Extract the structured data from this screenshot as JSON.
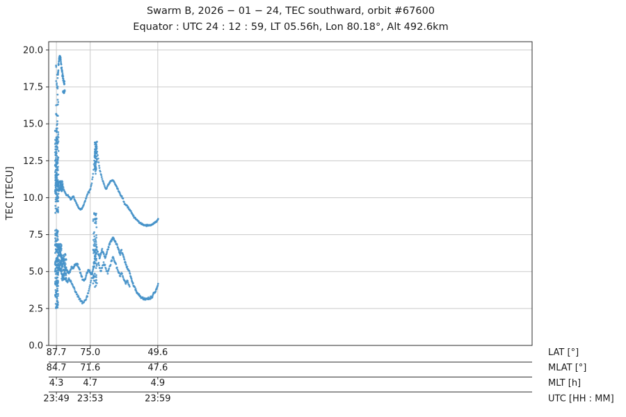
{
  "chart_data": {
    "type": "scatter",
    "title": "Swarm B,  2026 − 01 − 24,  TEC southward,  orbit #67600",
    "subtitle": "Equator :  UTC 24 : 12 : 59,  LT 05.56h,  Lon 80.18°,  Alt 492.6km",
    "ylabel": "TEC [TECU]",
    "ylim": [
      0,
      20.56
    ],
    "yticks": [
      {
        "value": 0.0,
        "label": "0.0"
      },
      {
        "value": 2.5,
        "label": "2.5"
      },
      {
        "value": 5.0,
        "label": "5.0"
      },
      {
        "value": 7.5,
        "label": "7.5"
      },
      {
        "value": 10.0,
        "label": "10.0"
      },
      {
        "value": 12.5,
        "label": "12.5"
      },
      {
        "value": 15.0,
        "label": "15.0"
      },
      {
        "value": 17.5,
        "label": "17.5"
      },
      {
        "value": 20.0,
        "label": "20.0"
      }
    ],
    "x_axis": {
      "coordinate": "latitude_deg",
      "lim": [
        90.6,
        -91.1
      ],
      "tick_lats": [
        87.7,
        75.0,
        49.6
      ],
      "grid": true
    },
    "x_axis_rows": [
      {
        "name": "LAT [°]",
        "labels": [
          "87.7",
          "75.0",
          "49.6"
        ]
      },
      {
        "name": "MLAT [°]",
        "labels": [
          "84.7",
          "71.6",
          "47.6"
        ]
      },
      {
        "name": "MLT [h]",
        "labels": [
          "4.3",
          "4.7",
          "4.9"
        ]
      },
      {
        "name": "UTC [HH : MM]",
        "labels": [
          "23:49",
          "23:53",
          "23:59"
        ]
      }
    ],
    "marker_color": "#4592c8",
    "grid_color": "#cacaca",
    "spine_color": "#2a2a2a",
    "series": [
      {
        "name": "polar-burst-upper",
        "kind": "burst",
        "lat_range": [
          86.9,
          88.2
        ],
        "tec_range": [
          9.0,
          14.6
        ],
        "n": 150
      },
      {
        "name": "polar-burst-top-sparse",
        "kind": "burst",
        "lat_range": [
          87.0,
          87.9
        ],
        "tec_range": [
          14.6,
          19.4
        ],
        "n": 26
      },
      {
        "name": "polar-burst-lower",
        "kind": "burst",
        "lat_range": [
          87.0,
          88.2
        ],
        "tec_range": [
          2.45,
          7.8
        ],
        "n": 150
      },
      {
        "name": "polar-cluster-11",
        "kind": "burst",
        "lat_range": [
          85.3,
          88.0
        ],
        "tec_range": [
          10.45,
          11.15
        ],
        "n": 90
      },
      {
        "name": "polar-cluster-low-a",
        "kind": "burst",
        "lat_range": [
          85.8,
          87.2
        ],
        "tec_range": [
          5.0,
          6.9
        ],
        "n": 70
      },
      {
        "name": "polar-cluster-low-b",
        "kind": "burst",
        "lat_range": [
          84.0,
          85.8
        ],
        "tec_range": [
          4.4,
          6.2
        ],
        "n": 70
      },
      {
        "name": "top-blob-arc",
        "kind": "trace",
        "spread": 0.27,
        "density": 27,
        "points": [
          [
            87.2,
            18.1
          ],
          [
            86.9,
            18.9
          ],
          [
            86.7,
            19.4
          ],
          [
            86.4,
            19.6
          ],
          [
            86.1,
            19.3
          ],
          [
            85.9,
            19.0
          ],
          [
            85.6,
            18.6
          ],
          [
            85.4,
            18.3
          ],
          [
            85.1,
            18.0
          ],
          [
            84.8,
            17.8
          ],
          [
            84.6,
            17.7
          ]
        ]
      },
      {
        "name": "blob-17",
        "kind": "blob",
        "lat": 84.9,
        "tec": 17.15,
        "rlat": 0.55,
        "rtec": 0.18,
        "n": 20
      },
      {
        "name": "spike-burst-lower",
        "kind": "burst",
        "lat_range": [
          72.4,
          73.9
        ],
        "tec_range": [
          3.9,
          9.0
        ],
        "n": 80
      },
      {
        "name": "spike-burst-upper",
        "kind": "burst",
        "lat_range": [
          72.4,
          73.4
        ],
        "tec_range": [
          11.6,
          13.8
        ],
        "n": 60
      },
      {
        "name": "upper-track",
        "kind": "trace",
        "spread": 0.08,
        "density": 6,
        "points": [
          [
            85.4,
            10.85
          ],
          [
            84.8,
            10.5
          ],
          [
            84.0,
            10.2
          ],
          [
            83.3,
            10.15
          ],
          [
            82.7,
            10.0
          ],
          [
            82.2,
            9.9
          ],
          [
            81.4,
            10.1
          ],
          [
            80.65,
            9.8
          ],
          [
            80.1,
            9.6
          ],
          [
            79.1,
            9.25
          ],
          [
            78.6,
            9.2
          ],
          [
            78.0,
            9.3
          ],
          [
            77.5,
            9.5
          ],
          [
            77.0,
            9.7
          ],
          [
            76.5,
            10.0
          ],
          [
            75.95,
            10.3
          ],
          [
            75.4,
            10.4
          ],
          [
            74.9,
            10.6
          ],
          [
            74.4,
            11.0
          ],
          [
            73.9,
            11.6
          ],
          [
            73.3,
            12.8
          ],
          [
            72.8,
            13.8
          ],
          [
            72.55,
            13.4
          ],
          [
            72.0,
            12.6
          ],
          [
            71.5,
            12.0
          ],
          [
            71.0,
            11.6
          ],
          [
            70.5,
            11.3
          ],
          [
            69.95,
            11.0
          ],
          [
            69.4,
            10.7
          ],
          [
            68.9,
            10.6
          ],
          [
            68.4,
            10.8
          ],
          [
            67.9,
            11.0
          ],
          [
            67.3,
            11.1
          ],
          [
            66.8,
            11.2
          ],
          [
            66.3,
            11.15
          ],
          [
            65.8,
            11.0
          ],
          [
            65.3,
            10.8
          ],
          [
            64.7,
            10.6
          ],
          [
            64.2,
            10.4
          ],
          [
            63.7,
            10.2
          ],
          [
            63.2,
            10.1
          ],
          [
            62.6,
            9.9
          ],
          [
            62.1,
            9.6
          ],
          [
            61.6,
            9.5
          ],
          [
            61.1,
            9.45
          ],
          [
            60.6,
            9.3
          ],
          [
            60.0,
            9.15
          ],
          [
            59.5,
            9.0
          ],
          [
            59.0,
            8.85
          ],
          [
            58.5,
            8.7
          ],
          [
            57.9,
            8.6
          ],
          [
            57.4,
            8.5
          ],
          [
            56.9,
            8.4
          ],
          [
            56.4,
            8.3
          ],
          [
            55.85,
            8.25
          ],
          [
            55.3,
            8.2
          ],
          [
            54.55,
            8.15
          ],
          [
            53.8,
            8.12
          ],
          [
            53.0,
            8.12
          ],
          [
            52.2,
            8.15
          ],
          [
            51.4,
            8.2
          ],
          [
            50.9,
            8.3
          ],
          [
            50.4,
            8.35
          ],
          [
            49.9,
            8.45
          ],
          [
            49.3,
            8.6
          ]
        ]
      },
      {
        "name": "lower-track-main",
        "kind": "trace",
        "spread": 0.14,
        "density": 7,
        "points": [
          [
            87.96,
            5.4
          ],
          [
            87.2,
            6.0
          ],
          [
            86.7,
            6.4
          ],
          [
            86.1,
            6.2
          ],
          [
            85.6,
            5.9
          ],
          [
            85.1,
            5.7
          ],
          [
            84.6,
            5.4
          ],
          [
            84.0,
            5.2
          ],
          [
            83.5,
            5.0
          ],
          [
            83.0,
            4.9
          ],
          [
            82.5,
            5.1
          ],
          [
            81.96,
            5.3
          ],
          [
            81.4,
            5.2
          ],
          [
            80.9,
            5.4
          ],
          [
            80.4,
            5.5
          ],
          [
            79.9,
            5.5
          ],
          [
            79.3,
            5.3
          ],
          [
            78.8,
            5.0
          ],
          [
            78.3,
            4.7
          ],
          [
            77.8,
            4.5
          ],
          [
            77.3,
            4.4
          ],
          [
            76.7,
            4.6
          ],
          [
            76.2,
            4.9
          ],
          [
            75.7,
            5.1
          ],
          [
            75.2,
            5.0
          ],
          [
            74.65,
            4.8
          ],
          [
            74.1,
            5.0
          ],
          [
            73.6,
            5.5
          ],
          [
            73.1,
            6.0
          ],
          [
            72.6,
            6.4
          ],
          [
            72.0,
            6.2
          ],
          [
            71.5,
            5.9
          ],
          [
            71.0,
            6.2
          ],
          [
            70.5,
            6.5
          ],
          [
            69.95,
            6.2
          ],
          [
            69.4,
            5.9
          ],
          [
            68.9,
            6.2
          ],
          [
            68.4,
            6.5
          ],
          [
            67.9,
            6.8
          ],
          [
            67.3,
            7.0
          ],
          [
            66.8,
            7.2
          ],
          [
            66.3,
            7.25
          ],
          [
            65.8,
            7.1
          ],
          [
            65.3,
            6.9
          ],
          [
            64.7,
            6.7
          ],
          [
            64.2,
            6.4
          ],
          [
            63.7,
            6.2
          ],
          [
            63.2,
            6.4
          ],
          [
            62.6,
            6.1
          ],
          [
            62.1,
            5.8
          ],
          [
            61.6,
            5.5
          ],
          [
            61.1,
            5.3
          ],
          [
            60.6,
            5.1
          ],
          [
            60.0,
            4.8
          ],
          [
            59.5,
            4.5
          ],
          [
            59.0,
            4.2
          ],
          [
            58.5,
            4.0
          ],
          [
            57.9,
            3.8
          ],
          [
            57.4,
            3.6
          ],
          [
            56.9,
            3.45
          ],
          [
            56.4,
            3.35
          ],
          [
            55.85,
            3.25
          ],
          [
            55.1,
            3.18
          ],
          [
            54.3,
            3.15
          ],
          [
            53.5,
            3.15
          ],
          [
            52.7,
            3.2
          ],
          [
            51.9,
            3.3
          ],
          [
            51.4,
            3.4
          ],
          [
            50.9,
            3.55
          ],
          [
            50.4,
            3.7
          ],
          [
            49.9,
            3.9
          ],
          [
            49.3,
            4.15
          ]
        ]
      },
      {
        "name": "lower-track-second",
        "kind": "trace",
        "spread": 0.14,
        "density": 5,
        "points": [
          [
            87.2,
            4.9
          ],
          [
            86.7,
            5.2
          ],
          [
            86.1,
            5.0
          ],
          [
            85.6,
            4.8
          ],
          [
            85.1,
            4.6
          ],
          [
            84.6,
            4.5
          ],
          [
            84.0,
            4.4
          ],
          [
            83.5,
            4.3
          ],
          [
            83.0,
            4.5
          ],
          [
            82.5,
            4.4
          ],
          [
            81.96,
            4.2
          ],
          [
            81.4,
            4.0
          ],
          [
            80.9,
            3.8
          ],
          [
            80.4,
            3.6
          ],
          [
            79.9,
            3.4
          ],
          [
            79.3,
            3.3
          ],
          [
            78.8,
            3.1
          ],
          [
            78.3,
            3.0
          ],
          [
            77.8,
            2.9
          ],
          [
            77.3,
            3.0
          ],
          [
            76.7,
            3.1
          ],
          [
            76.2,
            3.3
          ],
          [
            75.7,
            3.6
          ],
          [
            75.2,
            4.0
          ],
          [
            74.65,
            4.4
          ],
          [
            74.1,
            4.8
          ],
          [
            73.6,
            4.4
          ]
        ]
      },
      {
        "name": "lower-track-third",
        "kind": "trace",
        "spread": 0.14,
        "density": 5,
        "points": [
          [
            72.0,
            5.6
          ],
          [
            71.5,
            5.3
          ],
          [
            71.0,
            5.0
          ],
          [
            70.5,
            5.3
          ],
          [
            69.95,
            5.6
          ],
          [
            69.4,
            5.4
          ],
          [
            68.9,
            5.1
          ],
          [
            68.4,
            4.9
          ],
          [
            67.9,
            5.2
          ],
          [
            67.3,
            5.5
          ],
          [
            66.8,
            5.8
          ],
          [
            66.3,
            6.0
          ],
          [
            65.8,
            5.7
          ],
          [
            65.3,
            5.4
          ],
          [
            64.7,
            5.1
          ],
          [
            64.2,
            4.9
          ],
          [
            63.7,
            4.7
          ],
          [
            63.2,
            4.9
          ],
          [
            62.6,
            4.6
          ],
          [
            62.1,
            4.4
          ],
          [
            61.6,
            4.2
          ],
          [
            61.1,
            4.4
          ],
          [
            60.6,
            4.1
          ],
          [
            60.0,
            3.9
          ]
        ]
      }
    ]
  }
}
